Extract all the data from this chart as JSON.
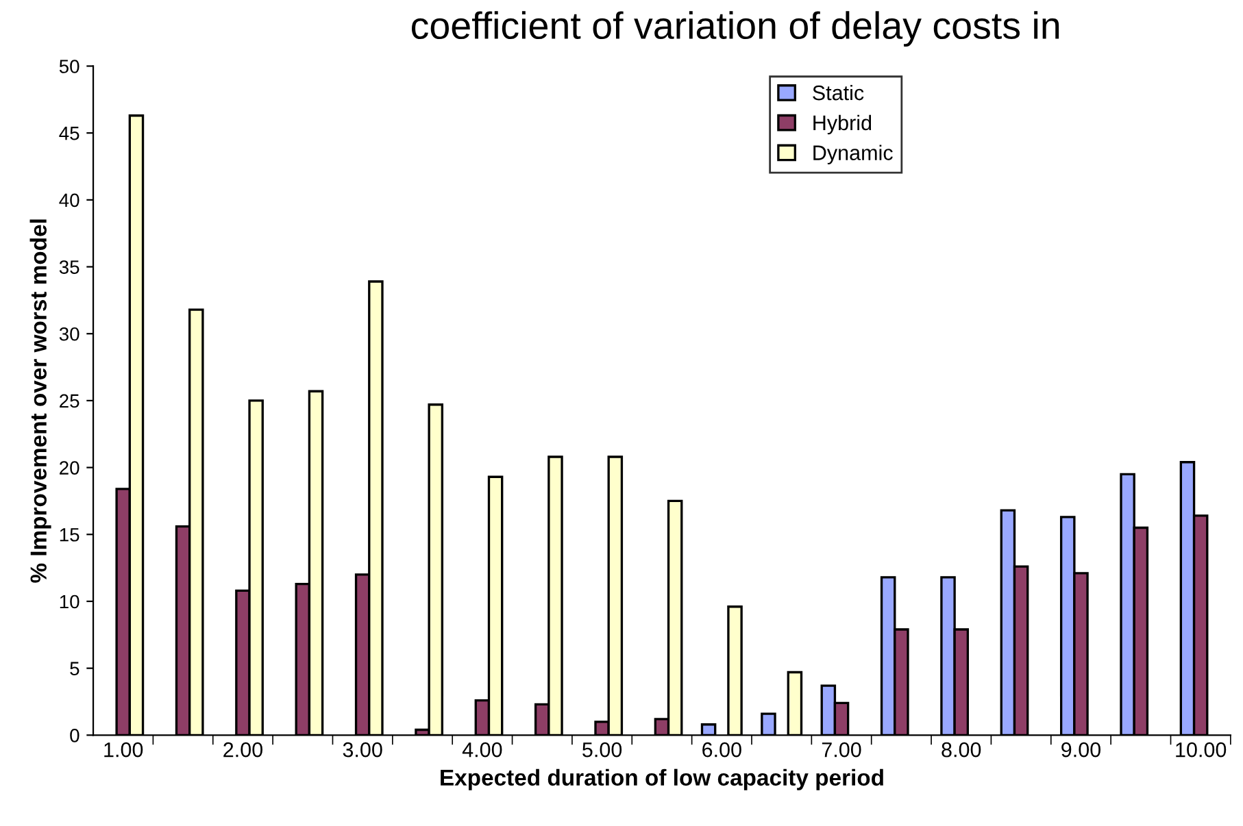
{
  "chart_data": {
    "type": "bar",
    "title": "coefficient of variation of delay costs in",
    "xlabel": "Expected duration of low capacity period",
    "ylabel": "% Improvement over worst model",
    "categories": [
      "1.00",
      null,
      "2.00",
      null,
      "3.00",
      null,
      "4.00",
      null,
      "5.00",
      null,
      "6.00",
      null,
      "7.00",
      null,
      "8.00",
      null,
      "9.00",
      null,
      "10.00"
    ],
    "series": [
      {
        "name": "Static",
        "color": "#99a8ff",
        "values": [
          null,
          null,
          null,
          null,
          null,
          null,
          null,
          null,
          null,
          null,
          0.8,
          1.6,
          3.7,
          11.8,
          11.8,
          16.8,
          16.3,
          19.5,
          20.4
        ]
      },
      {
        "name": "Hybrid",
        "color": "#8e3e66",
        "values": [
          18.4,
          15.6,
          10.8,
          11.3,
          12.0,
          0.4,
          2.6,
          2.3,
          1.0,
          1.2,
          null,
          null,
          2.4,
          7.9,
          7.9,
          12.6,
          12.1,
          15.5,
          16.4
        ]
      },
      {
        "name": "Dynamic",
        "color": "#ffffcc",
        "values": [
          46.3,
          31.8,
          25.0,
          25.7,
          33.9,
          24.7,
          19.3,
          20.8,
          20.8,
          17.5,
          9.6,
          4.7,
          null,
          null,
          null,
          null,
          null,
          null,
          null
        ]
      }
    ],
    "ylim": [
      0,
      50
    ],
    "yticks": [
      0,
      5,
      10,
      15,
      20,
      25,
      30,
      35,
      40,
      45,
      50
    ],
    "grid": false,
    "legend": "top right"
  }
}
